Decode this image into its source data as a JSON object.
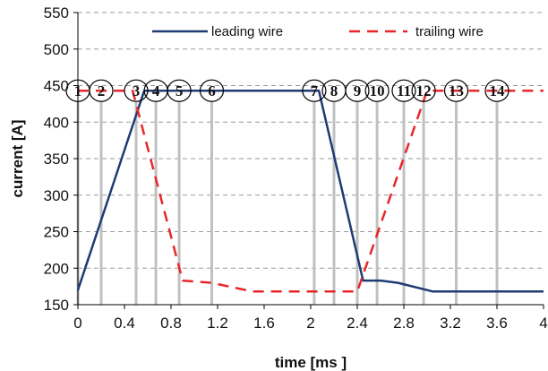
{
  "chart_data": {
    "type": "line",
    "title": "",
    "xlabel": "time [ms ]",
    "ylabel": "current [A]",
    "xlim": [
      0,
      4
    ],
    "ylim": [
      150,
      550
    ],
    "x_ticks": [
      0,
      0.4,
      0.8,
      1.2,
      1.6,
      2,
      2.4,
      2.8,
      3.2,
      3.6,
      4
    ],
    "x_tick_labels": [
      "0",
      "0.4",
      "0.8",
      "1.2",
      "1.6",
      "2",
      "2.4",
      "2.8",
      "3.2",
      "3.6",
      "4"
    ],
    "y_ticks": [
      150,
      200,
      250,
      300,
      350,
      400,
      450,
      500,
      550
    ],
    "y_tick_labels": [
      "150",
      "200",
      "250",
      "300",
      "350",
      "400",
      "450",
      "500",
      "550"
    ],
    "grid": "horizontal dashed",
    "legend_position": "top",
    "series": [
      {
        "name": "leading wire",
        "color": "#1f3b73",
        "style": "solid",
        "x": [
          0,
          0.57,
          2.07,
          2.45,
          2.6,
          2.75,
          3.05,
          4.0
        ],
        "y": [
          170,
          443,
          443,
          183,
          183,
          180,
          168,
          168
        ]
      },
      {
        "name": "trailing wire",
        "color": "#e8262a",
        "style": "dashed",
        "x": [
          0,
          0.47,
          0.9,
          1.15,
          1.5,
          2.35,
          2.4,
          3.0,
          4.0
        ],
        "y": [
          443,
          443,
          183,
          180,
          168,
          168,
          168,
          443,
          443
        ]
      }
    ],
    "markers": {
      "y": 443,
      "x": [
        0,
        0.2,
        0.5,
        0.67,
        0.87,
        1.15,
        2.03,
        2.2,
        2.4,
        2.57,
        2.8,
        2.97,
        3.25,
        3.6
      ],
      "labels": [
        "1",
        "2",
        "3",
        "4",
        "5",
        "6",
        "7",
        "8",
        "9",
        "10",
        "11",
        "12",
        "13",
        "14"
      ],
      "line_color": "#c0c0c0"
    }
  }
}
